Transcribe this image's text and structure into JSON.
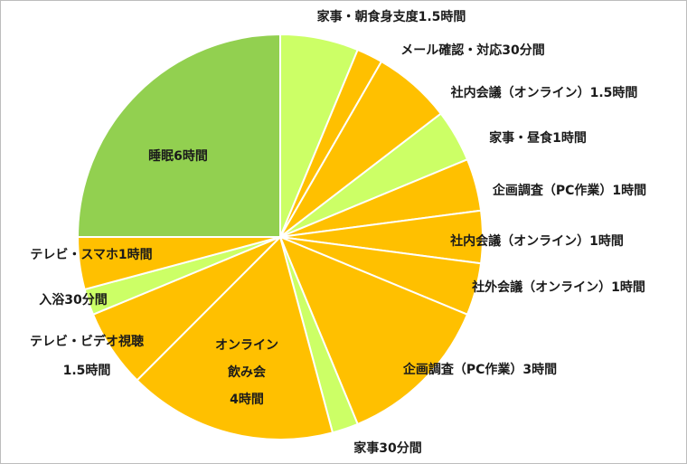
{
  "chart_data": {
    "type": "pie",
    "title": "",
    "unit": "minutes",
    "start_angle_deg": 0,
    "direction": "clockwise",
    "colors": {
      "sleep": "#92d050",
      "housework": "#ccff66",
      "work": "#ffc000",
      "edge": "#ffffff"
    },
    "slices": [
      {
        "label": "家事・朝食身支度1.5時間",
        "value": 90,
        "category": "housework"
      },
      {
        "label": "メール確認・対応30分間",
        "value": 30,
        "category": "work"
      },
      {
        "label": "社内会議（オンライン）1.5時間",
        "value": 90,
        "category": "work"
      },
      {
        "label": "家事・昼食1時間",
        "value": 60,
        "category": "housework"
      },
      {
        "label": "企画調査（PC作業）1時間",
        "value": 60,
        "category": "work"
      },
      {
        "label": "社内会議（オンライン）1時間",
        "value": 60,
        "category": "work"
      },
      {
        "label": "社外会議（オンライン）1時間",
        "value": 60,
        "category": "work"
      },
      {
        "label": "企画調査（PC作業）3時間",
        "value": 180,
        "category": "work"
      },
      {
        "label": "家事30分間",
        "value": 30,
        "category": "housework"
      },
      {
        "label": "オンライン\n飲み会\n4時間",
        "value": 240,
        "category": "work"
      },
      {
        "label": "テレビ・ビデオ視聴\n1.5時間",
        "value": 90,
        "category": "work"
      },
      {
        "label": "入浴30分間",
        "value": 30,
        "category": "housework"
      },
      {
        "label": "テレビ・スマホ1時間",
        "value": 60,
        "category": "work"
      },
      {
        "label": "睡眠6時間",
        "value": 360,
        "category": "sleep"
      }
    ]
  }
}
